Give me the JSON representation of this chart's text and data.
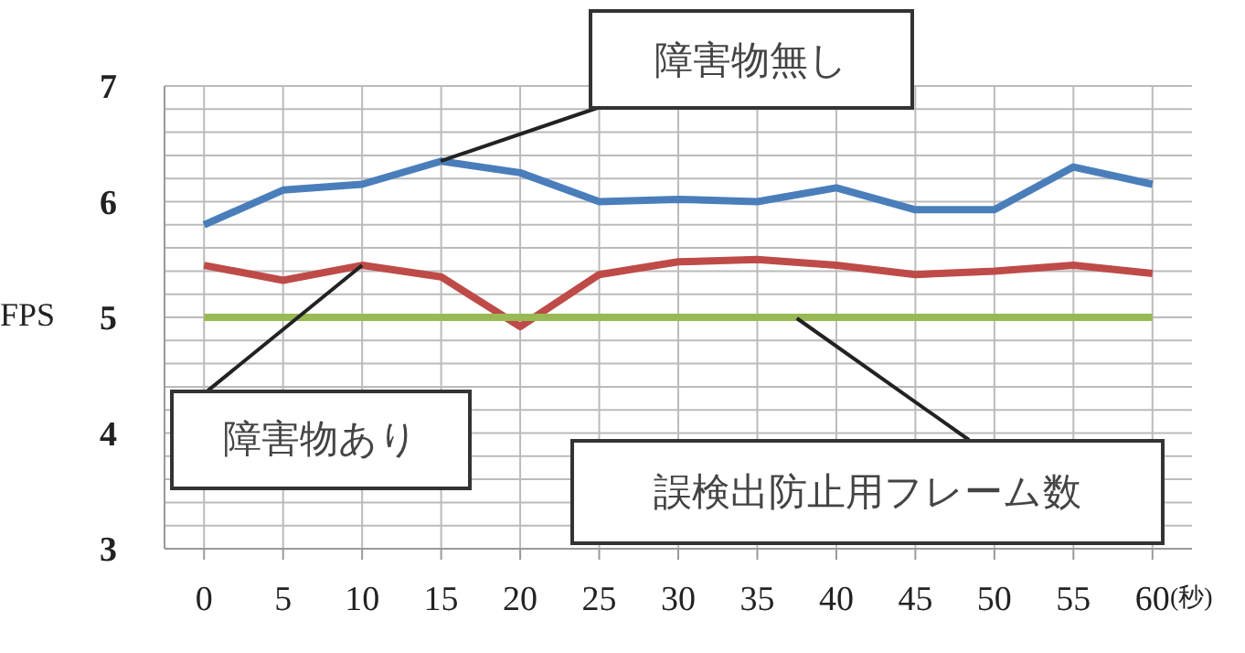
{
  "chart_data": {
    "type": "line",
    "ylabel": "FPS",
    "xlabel": "(秒)",
    "x": [
      0,
      5,
      10,
      15,
      20,
      25,
      30,
      35,
      40,
      45,
      50,
      55,
      60
    ],
    "xlim": [
      -2.5,
      62.5
    ],
    "xticks": [
      0,
      5,
      10,
      15,
      20,
      25,
      30,
      35,
      40,
      45,
      50,
      55,
      60
    ],
    "ylim": [
      3,
      7
    ],
    "yticks": [
      3,
      {
        "value": 3.2,
        "label": null
      },
      {
        "value": 3.4,
        "label": null
      },
      {
        "value": 3.6,
        "label": null
      },
      {
        "value": 3.8,
        "label": null
      },
      4,
      {
        "value": 4.2,
        "label": null
      },
      {
        "value": 4.4,
        "label": null
      },
      {
        "value": 4.6,
        "label": null
      },
      {
        "value": 4.8,
        "label": null
      },
      5,
      {
        "value": 5.2,
        "label": null
      },
      {
        "value": 5.4,
        "label": null
      },
      {
        "value": 5.6,
        "label": null
      },
      {
        "value": 5.8,
        "label": null
      },
      6,
      {
        "value": 6.2,
        "label": null
      },
      {
        "value": 6.4,
        "label": null
      },
      {
        "value": 6.6,
        "label": null
      },
      {
        "value": 6.8,
        "label": null
      },
      7
    ],
    "grid": true,
    "legend": false,
    "marker": "none",
    "series": [
      {
        "name": "障害物無し",
        "color": "#4a7ebb",
        "values": [
          5.8,
          6.1,
          6.15,
          6.35,
          6.25,
          6.0,
          6.02,
          6.0,
          6.12,
          5.93,
          5.93,
          6.3,
          6.15
        ]
      },
      {
        "name": "障害物あり",
        "color": "#be4b48",
        "values": [
          5.45,
          5.32,
          5.45,
          5.35,
          4.92,
          5.37,
          5.48,
          5.5,
          5.45,
          5.37,
          5.4,
          5.45,
          5.38
        ]
      },
      {
        "name": "誤検出防止用フレーム数",
        "color": "#98b954",
        "values": [
          5,
          5,
          5,
          5,
          5,
          5,
          5,
          5,
          5,
          5,
          5,
          5,
          5
        ]
      }
    ]
  }
}
